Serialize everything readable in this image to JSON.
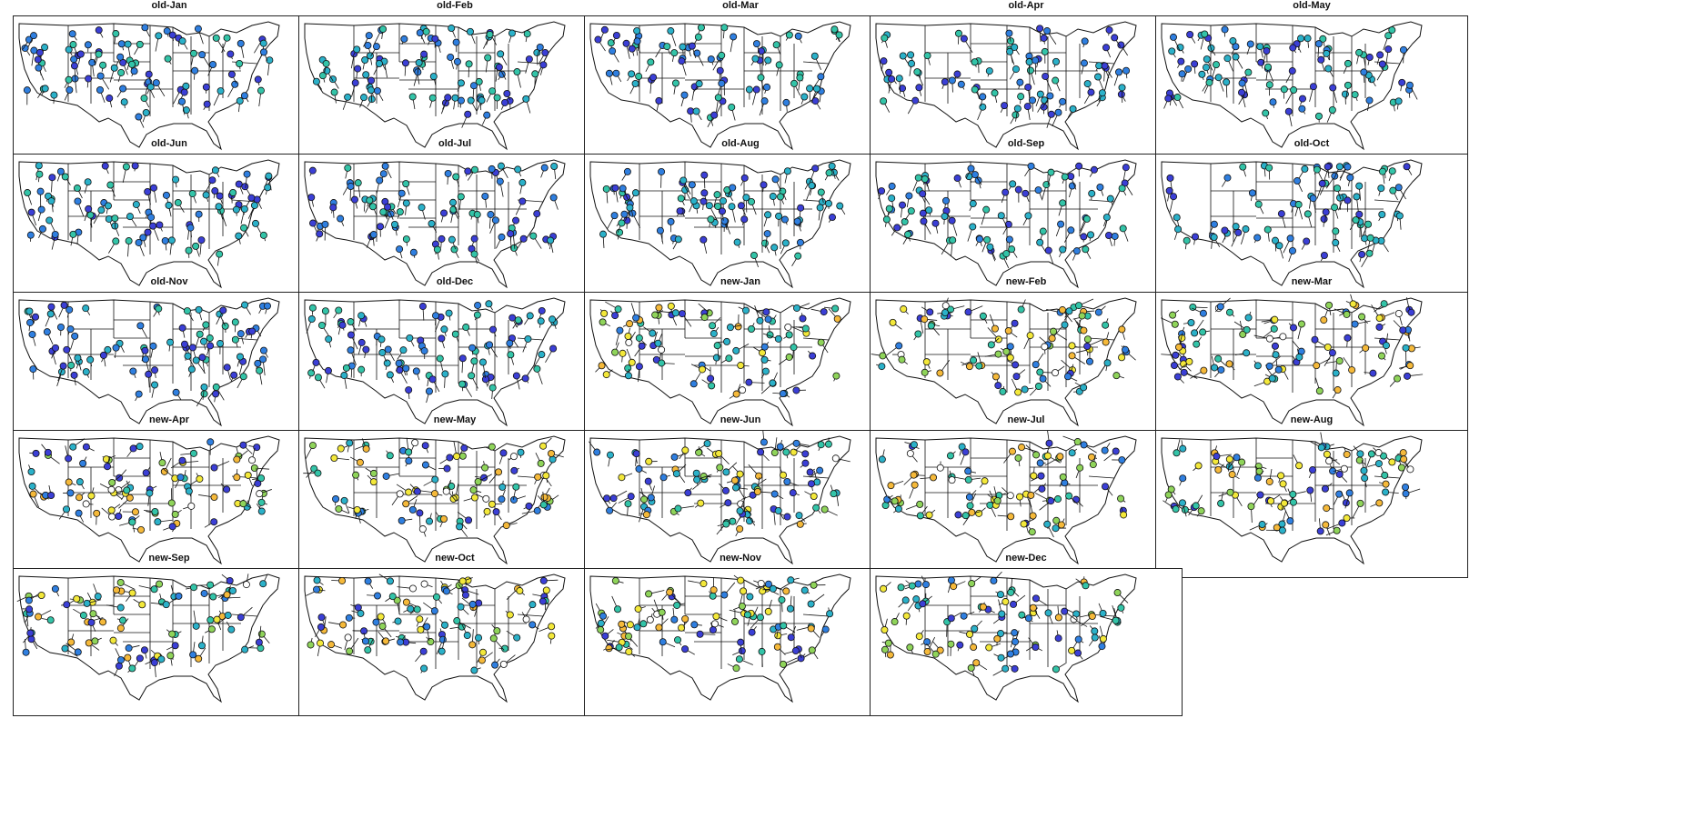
{
  "figure": {
    "panels": [
      {
        "title": "old-Jan",
        "regime": "old"
      },
      {
        "title": "old-Feb",
        "regime": "old"
      },
      {
        "title": "old-Mar",
        "regime": "old"
      },
      {
        "title": "old-Apr",
        "regime": "old"
      },
      {
        "title": "old-May",
        "regime": "old"
      },
      {
        "title": "old-Jun",
        "regime": "old"
      },
      {
        "title": "old-Jul",
        "regime": "old"
      },
      {
        "title": "old-Aug",
        "regime": "old"
      },
      {
        "title": "old-Sep",
        "regime": "old"
      },
      {
        "title": "old-Oct",
        "regime": "old"
      },
      {
        "title": "old-Nov",
        "regime": "old"
      },
      {
        "title": "old-Dec",
        "regime": "old"
      },
      {
        "title": "new-Jan",
        "regime": "new"
      },
      {
        "title": "new-Feb",
        "regime": "new"
      },
      {
        "title": "new-Mar",
        "regime": "new"
      },
      {
        "title": "new-Apr",
        "regime": "new"
      },
      {
        "title": "new-May",
        "regime": "new"
      },
      {
        "title": "new-Jun",
        "regime": "new"
      },
      {
        "title": "new-Jul",
        "regime": "new"
      },
      {
        "title": "new-Aug",
        "regime": "new"
      },
      {
        "title": "new-Sep",
        "regime": "new"
      },
      {
        "title": "new-Oct",
        "regime": "new"
      },
      {
        "title": "new-Nov",
        "regime": "new"
      },
      {
        "title": "new-Dec",
        "regime": "new"
      }
    ],
    "colors": {
      "marker_scale": [
        "#3b3fd6",
        "#2f7fe0",
        "#2bb1c9",
        "#33c4a8",
        "#8fd45a",
        "#f3e83a",
        "#f5b93a"
      ],
      "outline": "#111111",
      "state_lines": "#111111"
    }
  }
}
